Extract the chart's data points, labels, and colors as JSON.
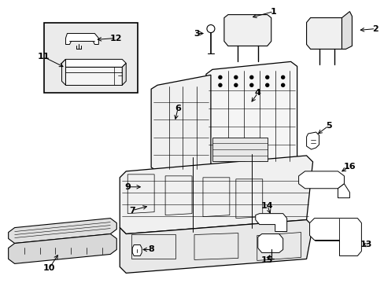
{
  "bg": "#ffffff",
  "lc": "#000000",
  "fg": "#f2f2f2",
  "inset_bg": "#ebebeb",
  "label_fs": 7.5
}
